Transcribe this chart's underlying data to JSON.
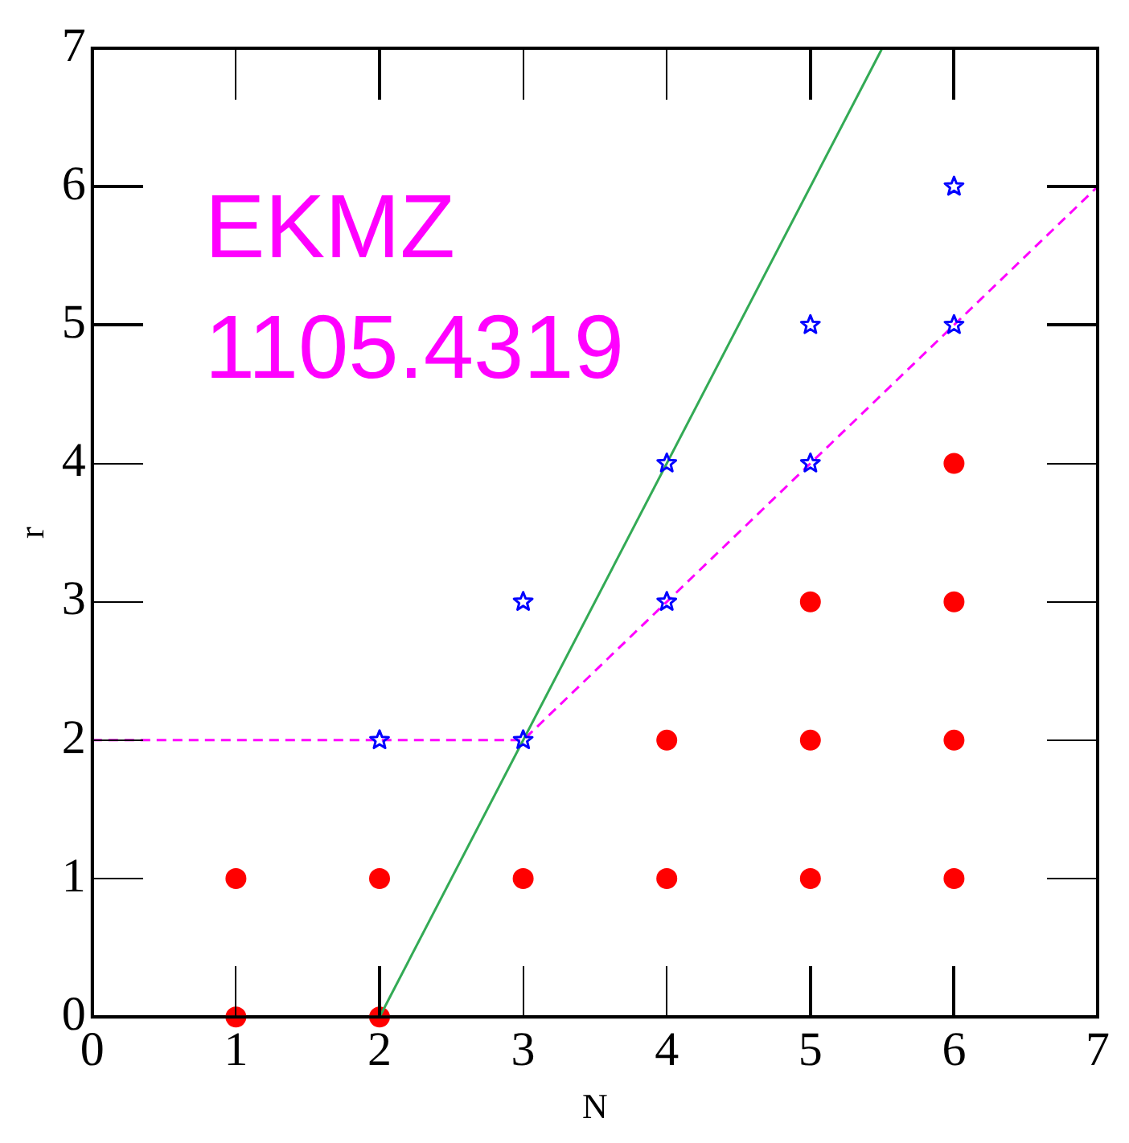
{
  "chart_data": {
    "type": "scatter",
    "xlabel": "N",
    "ylabel": "r",
    "xlim": [
      0,
      7
    ],
    "ylim": [
      0,
      7
    ],
    "xticks": [
      0,
      1,
      2,
      3,
      4,
      5,
      6,
      7
    ],
    "yticks": [
      0,
      1,
      2,
      3,
      4,
      5,
      6,
      7
    ],
    "grid": false,
    "legend": false,
    "annotations": [
      "EKMZ",
      "1105.4319"
    ],
    "series": [
      {
        "type": "scatter",
        "color": "#ff0000",
        "marker": "circle",
        "x": [
          1,
          2,
          1,
          2,
          3,
          4,
          5,
          6,
          4,
          5,
          6,
          5,
          6,
          6
        ],
        "values": [
          0,
          0,
          1,
          1,
          1,
          1,
          1,
          1,
          2,
          2,
          2,
          3,
          3,
          4
        ]
      },
      {
        "type": "scatter",
        "color": "#0000ff",
        "marker": "star",
        "x": [
          2,
          3,
          3,
          4,
          4,
          5,
          5,
          6,
          6
        ],
        "values": [
          2,
          2,
          3,
          3,
          4,
          4,
          5,
          5,
          6
        ]
      },
      {
        "type": "line",
        "color": "#33aa55",
        "marker": "none",
        "line_style": "solid",
        "x": [
          2,
          5.5
        ],
        "values": [
          0,
          7
        ]
      },
      {
        "type": "line",
        "color": "#ff00ff",
        "marker": "none",
        "line_style": "dashed",
        "x": [
          0,
          3,
          7
        ],
        "values": [
          2,
          2,
          6
        ]
      }
    ]
  }
}
